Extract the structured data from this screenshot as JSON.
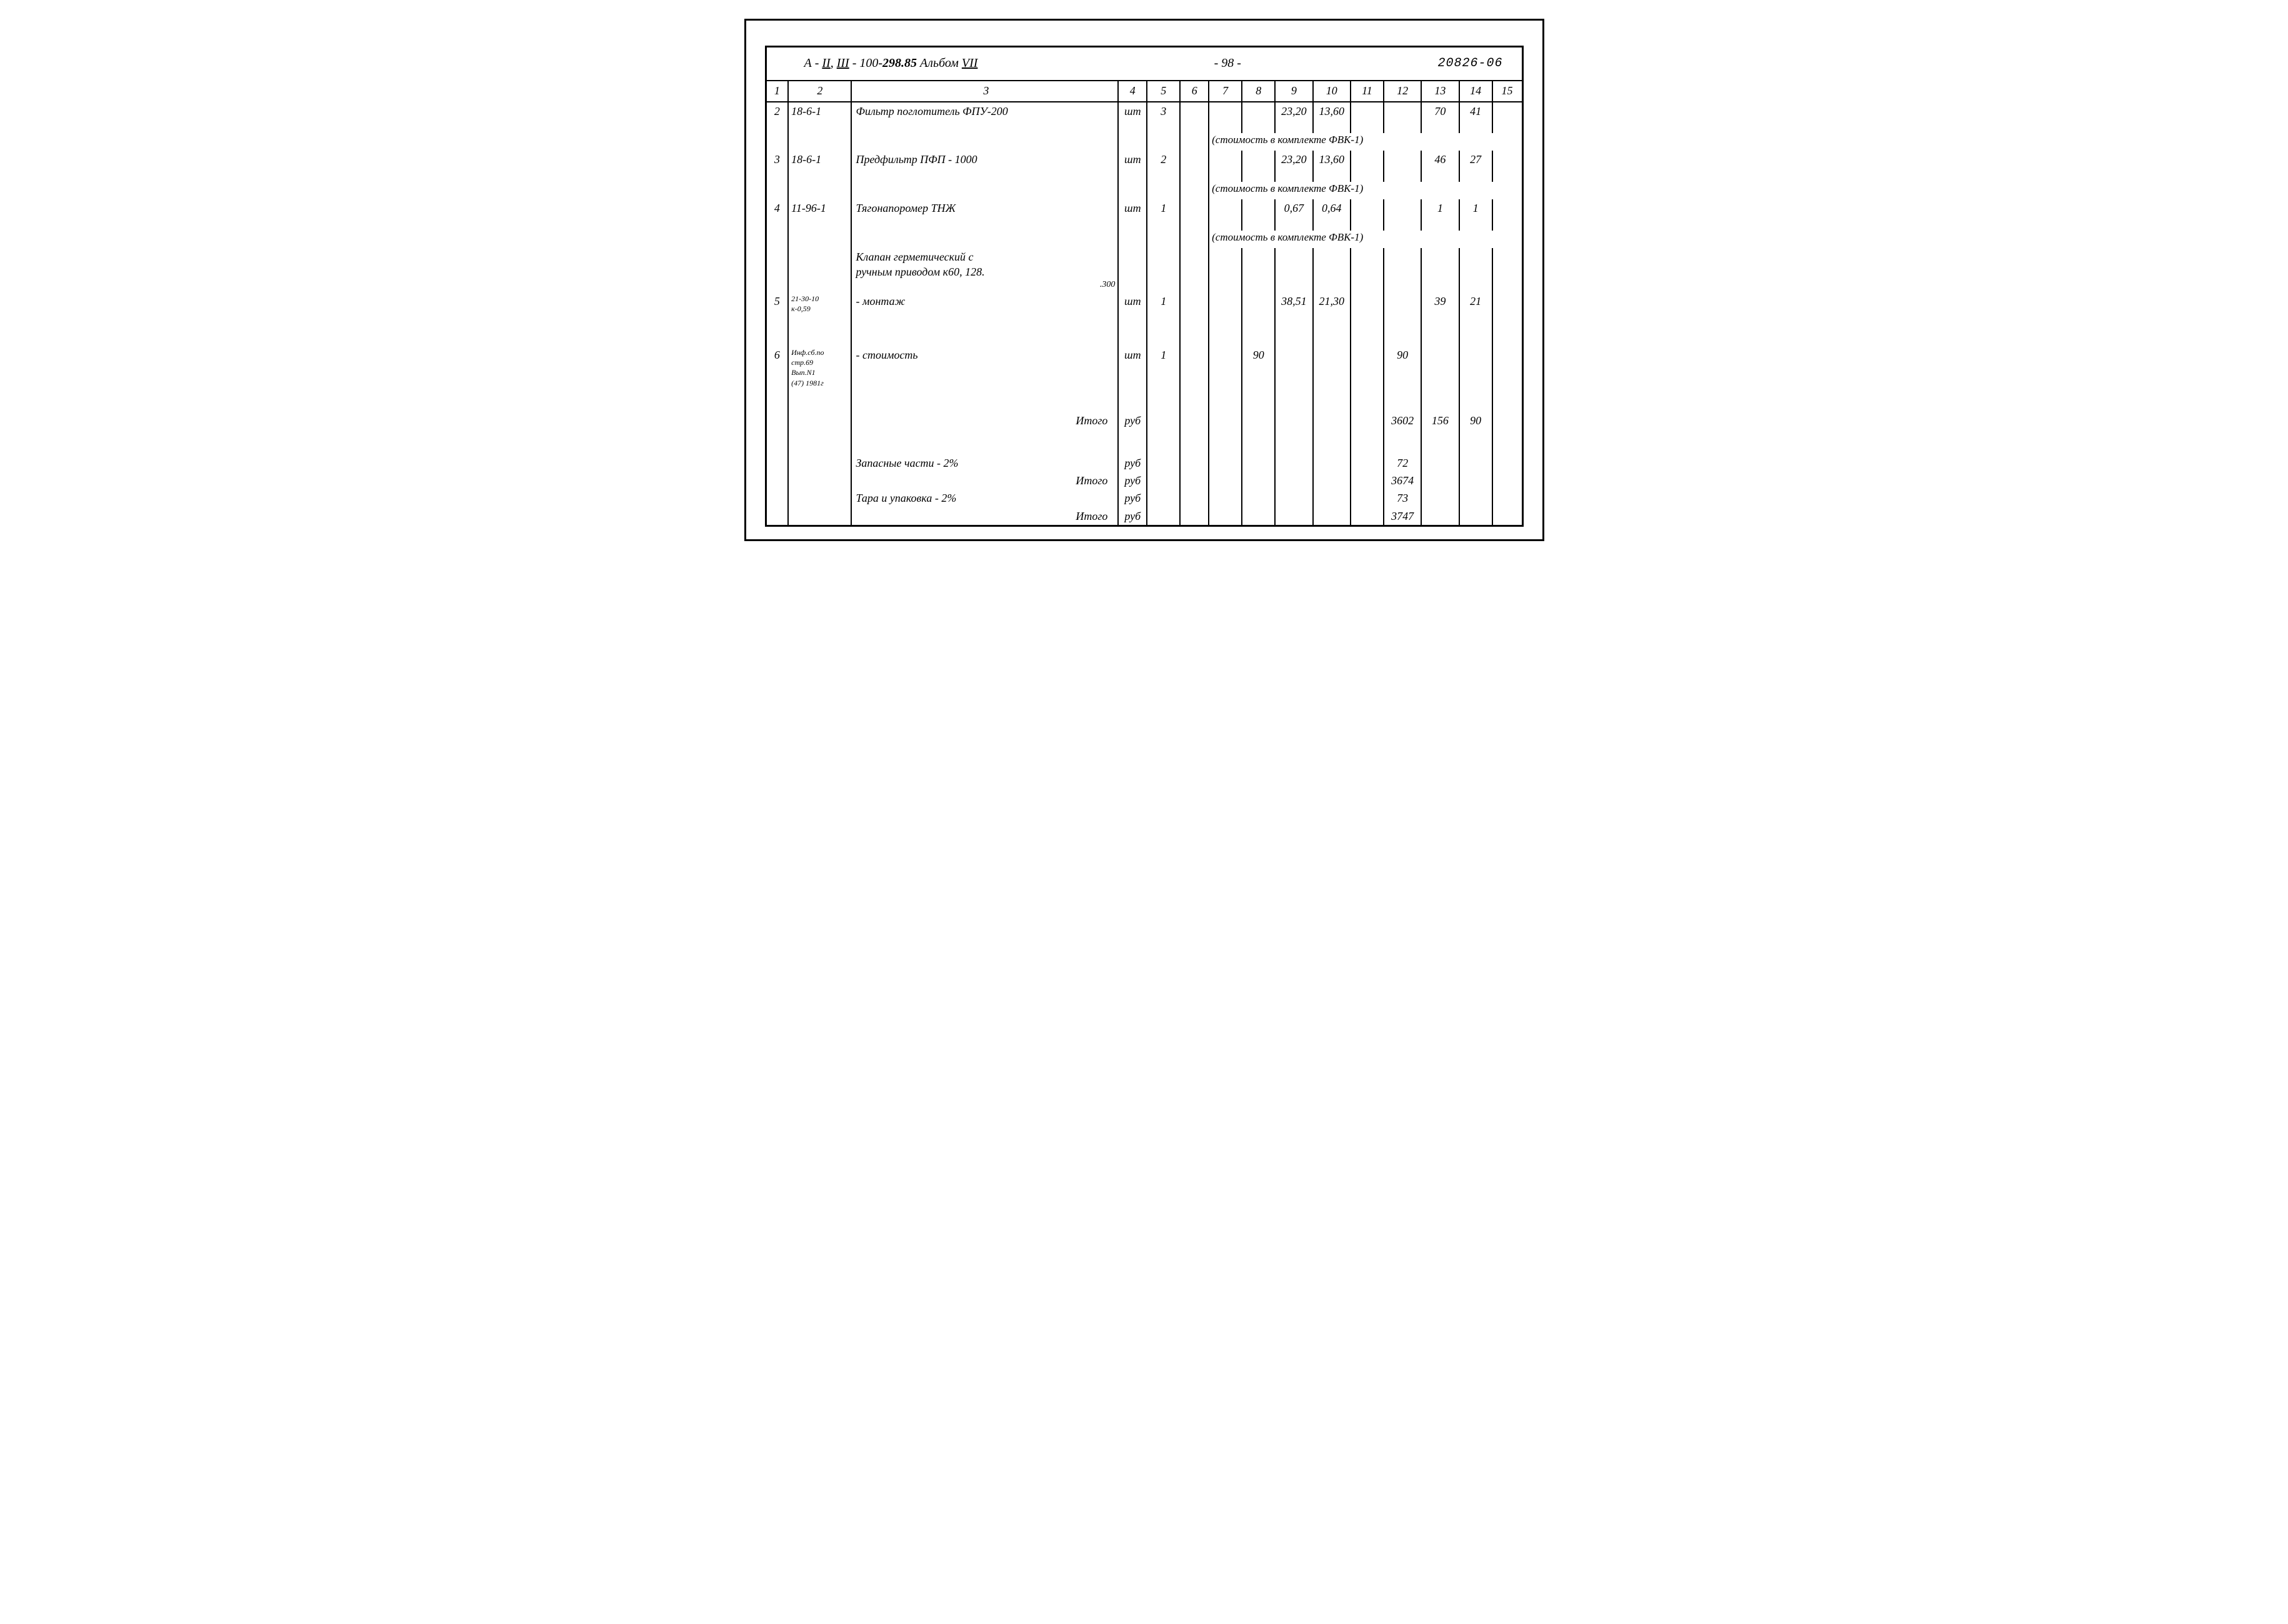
{
  "header": {
    "title_html": "А - <span class='uline'>II</span>, <span class='uline'>III</span> - 100-<b>298.85</b> Альбом <span class='uline'>VII</span>",
    "page_number": "- 98 -",
    "doc_number": "20826-06"
  },
  "columns": [
    "1",
    "2",
    "3",
    "4",
    "5",
    "6",
    "7",
    "8",
    "9",
    "10",
    "11",
    "12",
    "13",
    "14",
    "15"
  ],
  "rows": [
    {
      "n": "2",
      "code": "18-6-1",
      "desc": "Фильтр  поглотитель ФПУ-200",
      "unit": "шт",
      "qty": "3",
      "c9": "23,20",
      "c10": "13,60",
      "c13": "70",
      "c14": "41",
      "note": "(стоимость  в  комплекте ФВК-1)"
    },
    {
      "n": "3",
      "code": "18-6-1",
      "desc": "Предфильтр  ПФП - 1000",
      "unit": "шт",
      "qty": "2",
      "c9": "23,20",
      "c10": "13,60",
      "c13": "46",
      "c14": "27",
      "note": "(стоимость в комплекте ФВК-1)"
    },
    {
      "n": "4",
      "code": "11-96-1",
      "desc": "Тягонапоромер  ТНЖ",
      "unit": "шт",
      "qty": "1",
      "c9": "0,67",
      "c10": "0,64",
      "c13": "1",
      "c14": "1",
      "note": "(стоимость в комплекте ФВК-1)"
    },
    {
      "pre_desc": "Клапан герметический с<br>ручным  приводом к60, 128.<br><span style='float:right;font-size:14px'>.300</span>",
      "n": "5",
      "code": "21-30-10<br>к-0,59",
      "desc": "- монтаж",
      "unit": "шт",
      "qty": "1",
      "c9": "38,51",
      "c10": "21,30",
      "c13": "39",
      "c14": "21"
    },
    {
      "n": "6",
      "code": "Инф.сб.по<br>стр.69<br>Вып.N1<br>(47) 1981г",
      "desc": "- стоимость",
      "unit": "шт",
      "qty": "1",
      "c8": "90",
      "c12": "90"
    }
  ],
  "totals": [
    {
      "desc": "Итого",
      "unit": "руб",
      "c12": "3602",
      "c13": "156",
      "c14": "90",
      "align": "right"
    },
    {
      "desc": "Запасные части - 2%",
      "unit": "руб",
      "c12": "72",
      "align": "left"
    },
    {
      "desc": "Итого",
      "unit": "руб",
      "c12": "3674",
      "align": "right"
    },
    {
      "desc": "Тара и упаковка - 2%",
      "unit": "руб",
      "c12": "73",
      "align": "left"
    },
    {
      "desc": "Итого",
      "unit": "руб",
      "c12": "3747",
      "align": "right"
    }
  ],
  "style": {
    "bg": "#ffffff",
    "ink": "#000000",
    "border_w": 2,
    "outer_border_w": 3,
    "font": "Comic Sans MS, Segoe Script, cursive",
    "font_italic": true
  }
}
